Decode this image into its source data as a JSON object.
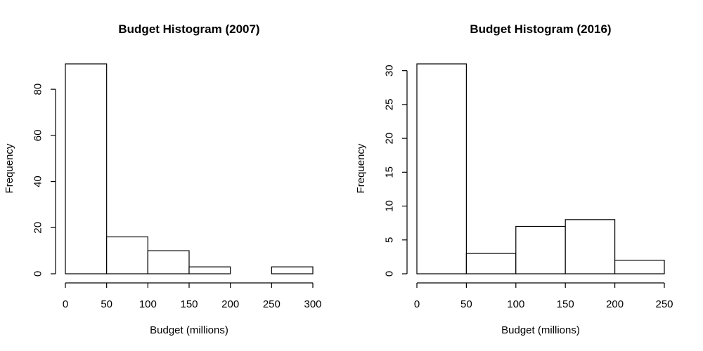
{
  "colors": {
    "background": "#ffffff",
    "bar_fill": "#ffffff",
    "bar_stroke": "#000000"
  },
  "chart_data": [
    {
      "type": "bar",
      "title": "Budget Histogram (2007)",
      "xlabel": "Budget (millions)",
      "ylabel": "Frequency",
      "bins": [
        {
          "start": 0,
          "end": 50,
          "count": 91
        },
        {
          "start": 50,
          "end": 100,
          "count": 16
        },
        {
          "start": 100,
          "end": 150,
          "count": 10
        },
        {
          "start": 150,
          "end": 200,
          "count": 3
        },
        {
          "start": 200,
          "end": 250,
          "count": 0
        },
        {
          "start": 250,
          "end": 300,
          "count": 3
        }
      ],
      "xticks": [
        0,
        50,
        100,
        150,
        200,
        250,
        300
      ],
      "yticks": [
        0,
        20,
        40,
        60,
        80
      ],
      "xlim": [
        0,
        300
      ],
      "ylim": [
        0,
        91
      ],
      "grid": false
    },
    {
      "type": "bar",
      "title": "Budget Histogram (2016)",
      "xlabel": "Budget (millions)",
      "ylabel": "Frequency",
      "bins": [
        {
          "start": 0,
          "end": 50,
          "count": 31
        },
        {
          "start": 50,
          "end": 100,
          "count": 3
        },
        {
          "start": 100,
          "end": 150,
          "count": 7
        },
        {
          "start": 150,
          "end": 200,
          "count": 8
        },
        {
          "start": 200,
          "end": 250,
          "count": 2
        }
      ],
      "xticks": [
        0,
        50,
        100,
        150,
        200,
        250
      ],
      "yticks": [
        0,
        5,
        10,
        15,
        20,
        25,
        30
      ],
      "xlim": [
        0,
        250
      ],
      "ylim": [
        0,
        31
      ],
      "grid": false
    }
  ]
}
